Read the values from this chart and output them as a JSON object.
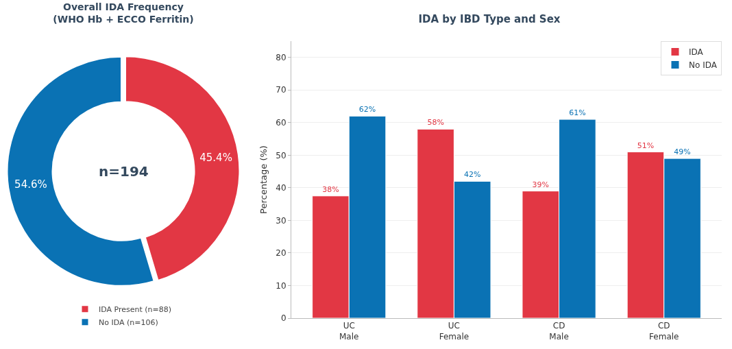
{
  "chart_data": [
    {
      "type": "donut",
      "title": "Overall IDA Frequency\n(WHO Hb + ECCO Ferritin)",
      "categories": [
        "IDA Present (n=88)",
        "No IDA (n=106)"
      ],
      "values": [
        45.4,
        54.6
      ],
      "colors": [
        "#e23744",
        "#0a72b4"
      ],
      "value_labels": [
        "45.4%",
        "54.6%"
      ],
      "annotations": [
        "n=194"
      ],
      "legend": "bottom"
    },
    {
      "type": "bar",
      "title": "IDA by IBD Type and Sex",
      "ylabel": "Percentage (%)",
      "categories": [
        "UC\nMale",
        "UC\nFemale",
        "CD\nMale",
        "CD\nFemale"
      ],
      "series": [
        {
          "name": "IDA",
          "color": "#e23744",
          "values": [
            37.5,
            58,
            39,
            51
          ],
          "value_labels": [
            "38%",
            "58%",
            "39%",
            "51%"
          ]
        },
        {
          "name": "No IDA",
          "color": "#0a72b4",
          "values": [
            62,
            42,
            61,
            49
          ],
          "value_labels": [
            "62%",
            "42%",
            "61%",
            "49%"
          ]
        }
      ],
      "ylim": [
        0,
        85
      ],
      "yticks": [
        0,
        10,
        20,
        30,
        40,
        50,
        60,
        70,
        80
      ],
      "grid": "y",
      "legend": "top right"
    }
  ]
}
